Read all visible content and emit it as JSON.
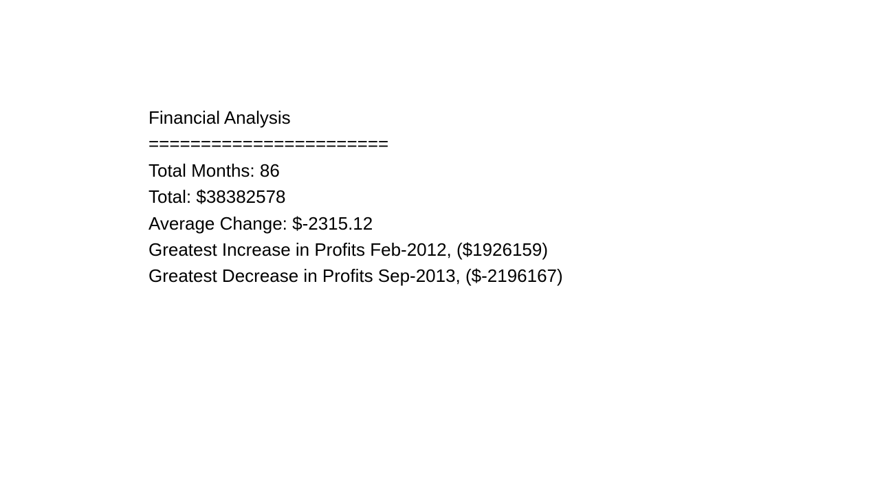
{
  "report": {
    "title": "Financial Analysis",
    "separator": "=======================",
    "total_months": "Total Months: 86",
    "total": "Total: $38382578",
    "average_change": "Average Change: $-2315.12",
    "greatest_increase": "Greatest Increase in Profits Feb-2012, ($1926159)",
    "greatest_decrease": "Greatest Decrease in Profits Sep-2013, ($-2196167)"
  }
}
